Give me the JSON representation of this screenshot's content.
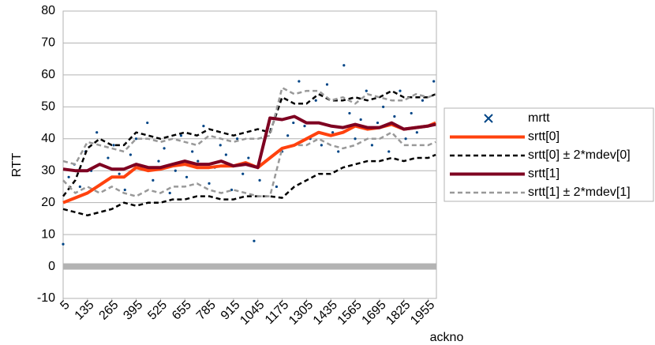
{
  "chart_data": {
    "type": "line",
    "x_label": "ackno",
    "y_label": "RTT",
    "xlim": [
      5,
      1999
    ],
    "ylim": [
      -10,
      80
    ],
    "xticks": [
      5,
      135,
      265,
      395,
      525,
      655,
      785,
      915,
      1045,
      1175,
      1305,
      1435,
      1565,
      1695,
      1825,
      1955
    ],
    "yticks": [
      -10,
      0,
      10,
      20,
      30,
      40,
      50,
      60,
      70,
      80
    ],
    "grid": true,
    "x": [
      5,
      70,
      135,
      200,
      265,
      330,
      395,
      460,
      525,
      590,
      655,
      720,
      785,
      850,
      915,
      980,
      1045,
      1110,
      1175,
      1240,
      1305,
      1370,
      1435,
      1500,
      1565,
      1630,
      1695,
      1760,
      1825,
      1890,
      1955,
      1995
    ],
    "series": [
      {
        "name": "mrtt",
        "type": "scatter",
        "color": "#004586",
        "x": [
          5,
          35,
          65,
          95,
          125,
          155,
          185,
          215,
          245,
          275,
          305,
          335,
          365,
          395,
          425,
          455,
          485,
          515,
          545,
          575,
          605,
          635,
          665,
          695,
          725,
          755,
          785,
          815,
          845,
          875,
          905,
          935,
          965,
          995,
          1025,
          1055,
          1085,
          1115,
          1145,
          1175,
          1205,
          1235,
          1265,
          1295,
          1325,
          1355,
          1385,
          1415,
          1445,
          1475,
          1505,
          1535,
          1565,
          1595,
          1625,
          1655,
          1685,
          1715,
          1745,
          1775,
          1805,
          1835,
          1865,
          1895,
          1925,
          1955,
          1985
        ],
        "values": [
          7,
          28,
          32,
          25,
          36,
          30,
          42,
          26,
          34,
          38,
          29,
          24,
          35,
          40,
          31,
          45,
          27,
          33,
          37,
          23,
          30,
          41,
          28,
          36,
          33,
          44,
          26,
          31,
          38,
          35,
          24,
          40,
          29,
          34,
          8,
          27,
          33,
          43,
          25,
          36,
          41,
          45,
          58,
          44,
          40,
          52,
          38,
          57,
          42,
          36,
          63,
          48,
          40,
          46,
          55,
          38,
          45,
          50,
          36,
          47,
          55,
          40,
          48,
          42,
          52,
          44,
          58
        ]
      },
      {
        "name": "srtt[0]",
        "type": "line",
        "color": "#ff420e",
        "width": 4,
        "dash": false,
        "values": [
          20,
          21.5,
          23,
          25.5,
          28,
          28,
          31,
          30,
          30.5,
          31.5,
          32,
          31,
          31,
          31.5,
          31.5,
          32.5,
          31,
          34,
          37,
          38,
          40,
          42,
          41,
          42,
          44,
          43,
          43.5,
          44.5,
          43,
          43.5,
          44,
          45
        ]
      },
      {
        "name": "srtt[0] ± 2*mdev[0]",
        "type": "band",
        "color": "#000000",
        "width": 2.5,
        "dash": true,
        "upper": [
          22,
          27,
          37,
          40,
          38,
          38,
          42,
          41,
          40,
          41,
          42,
          41,
          43,
          42,
          41,
          42,
          43,
          42,
          53,
          51,
          51,
          54,
          52,
          52,
          53,
          52,
          53,
          55,
          53,
          53,
          53,
          54
        ],
        "lower": [
          18,
          17,
          16,
          17,
          18,
          20,
          19,
          20,
          20,
          21,
          21,
          22,
          22,
          21,
          21,
          22,
          22,
          22,
          21.5,
          25,
          27,
          29,
          29,
          31,
          32,
          33,
          33,
          34,
          33,
          34,
          34,
          35
        ]
      },
      {
        "name": "srtt[1]",
        "type": "line",
        "color": "#7e0021",
        "width": 4,
        "dash": false,
        "values": [
          30.5,
          30,
          30,
          32,
          30.5,
          30.5,
          32,
          31,
          31,
          32,
          33,
          32,
          32,
          33,
          31.5,
          32,
          31,
          46.5,
          46,
          47,
          45,
          45,
          44,
          43.5,
          44.5,
          43.5,
          43.5,
          45,
          43,
          43.5,
          44,
          44.5
        ]
      },
      {
        "name": "srtt[1] ± 2*mdev[1]",
        "type": "band",
        "color": "#999999",
        "width": 2.5,
        "dash": true,
        "upper": [
          33,
          32,
          39,
          38,
          37,
          36,
          40,
          40,
          39,
          40,
          39,
          38,
          41,
          40,
          39,
          40,
          40,
          41,
          56,
          54,
          55,
          55,
          52,
          53,
          51,
          54,
          53,
          52,
          52,
          54,
          53,
          54
        ],
        "lower": [
          27,
          23,
          25,
          23,
          25,
          23,
          22,
          24,
          23,
          25,
          25,
          26,
          24,
          23,
          24,
          23,
          22,
          22,
          37,
          38,
          38,
          40,
          38,
          37,
          38,
          40,
          40,
          42,
          38,
          38,
          38,
          39
        ]
      }
    ]
  }
}
